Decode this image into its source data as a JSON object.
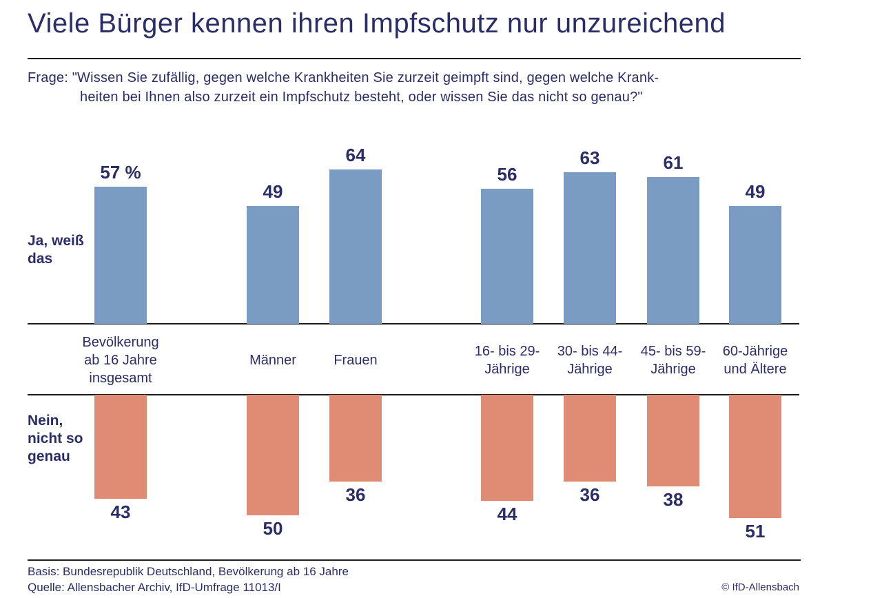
{
  "title": "Viele Bürger kennen ihren Impfschutz nur unzureichend",
  "question": {
    "line1": "Frage: \"Wissen Sie zufällig, gegen welche Krankheiten Sie zurzeit geimpft sind, gegen welche Krank-",
    "line2": "heiten bei Ihnen also zurzeit ein Impfschutz besteht, oder wissen Sie das nicht so genau?\""
  },
  "series_labels": {
    "ja": "Ja, weiß\ndas",
    "nein": "Nein,\nnicht so\ngenau"
  },
  "footer": {
    "basis": "Basis: Bundesrepublik Deutschland, Bevölkerung ab 16 Jahre",
    "quelle": "Quelle: Allensbacher Archiv, IfD-Umfrage 11013/I",
    "copyright": "© IfD-Allensbach"
  },
  "colors": {
    "navy_text": "#2b2d66",
    "blue_bar": "#7a9cc2",
    "orange_bar": "#e08c74",
    "rule": "#1b1b1b"
  },
  "chart_data": {
    "type": "bar",
    "orientation": "diverging-vertical",
    "unit": "percent",
    "title": "Viele Bürger kennen ihren Impfschutz nur unzureichend",
    "categories": [
      "Bevölkerung\nab 16 Jahre\ninsgesamt",
      "Männer",
      "Frauen",
      "16- bis 29-\nJährige",
      "30- bis 44-\nJährige",
      "45- bis 59-\nJährige",
      "60-Jährige\nund Ältere"
    ],
    "series": [
      {
        "name": "Ja, weiß das",
        "direction": "up",
        "color": "#7a9cc2",
        "values": [
          57,
          49,
          64,
          56,
          63,
          61,
          49
        ],
        "value_labels": [
          "57 %",
          "49",
          "64",
          "56",
          "63",
          "61",
          "49"
        ]
      },
      {
        "name": "Nein, nicht so genau",
        "direction": "down",
        "color": "#e08c74",
        "values": [
          43,
          50,
          36,
          44,
          36,
          38,
          51
        ],
        "value_labels": [
          "43",
          "50",
          "36",
          "44",
          "36",
          "38",
          "51"
        ]
      }
    ],
    "value_axis_range": [
      0,
      100
    ],
    "grid": false,
    "legend_position": "left-of-bars"
  }
}
